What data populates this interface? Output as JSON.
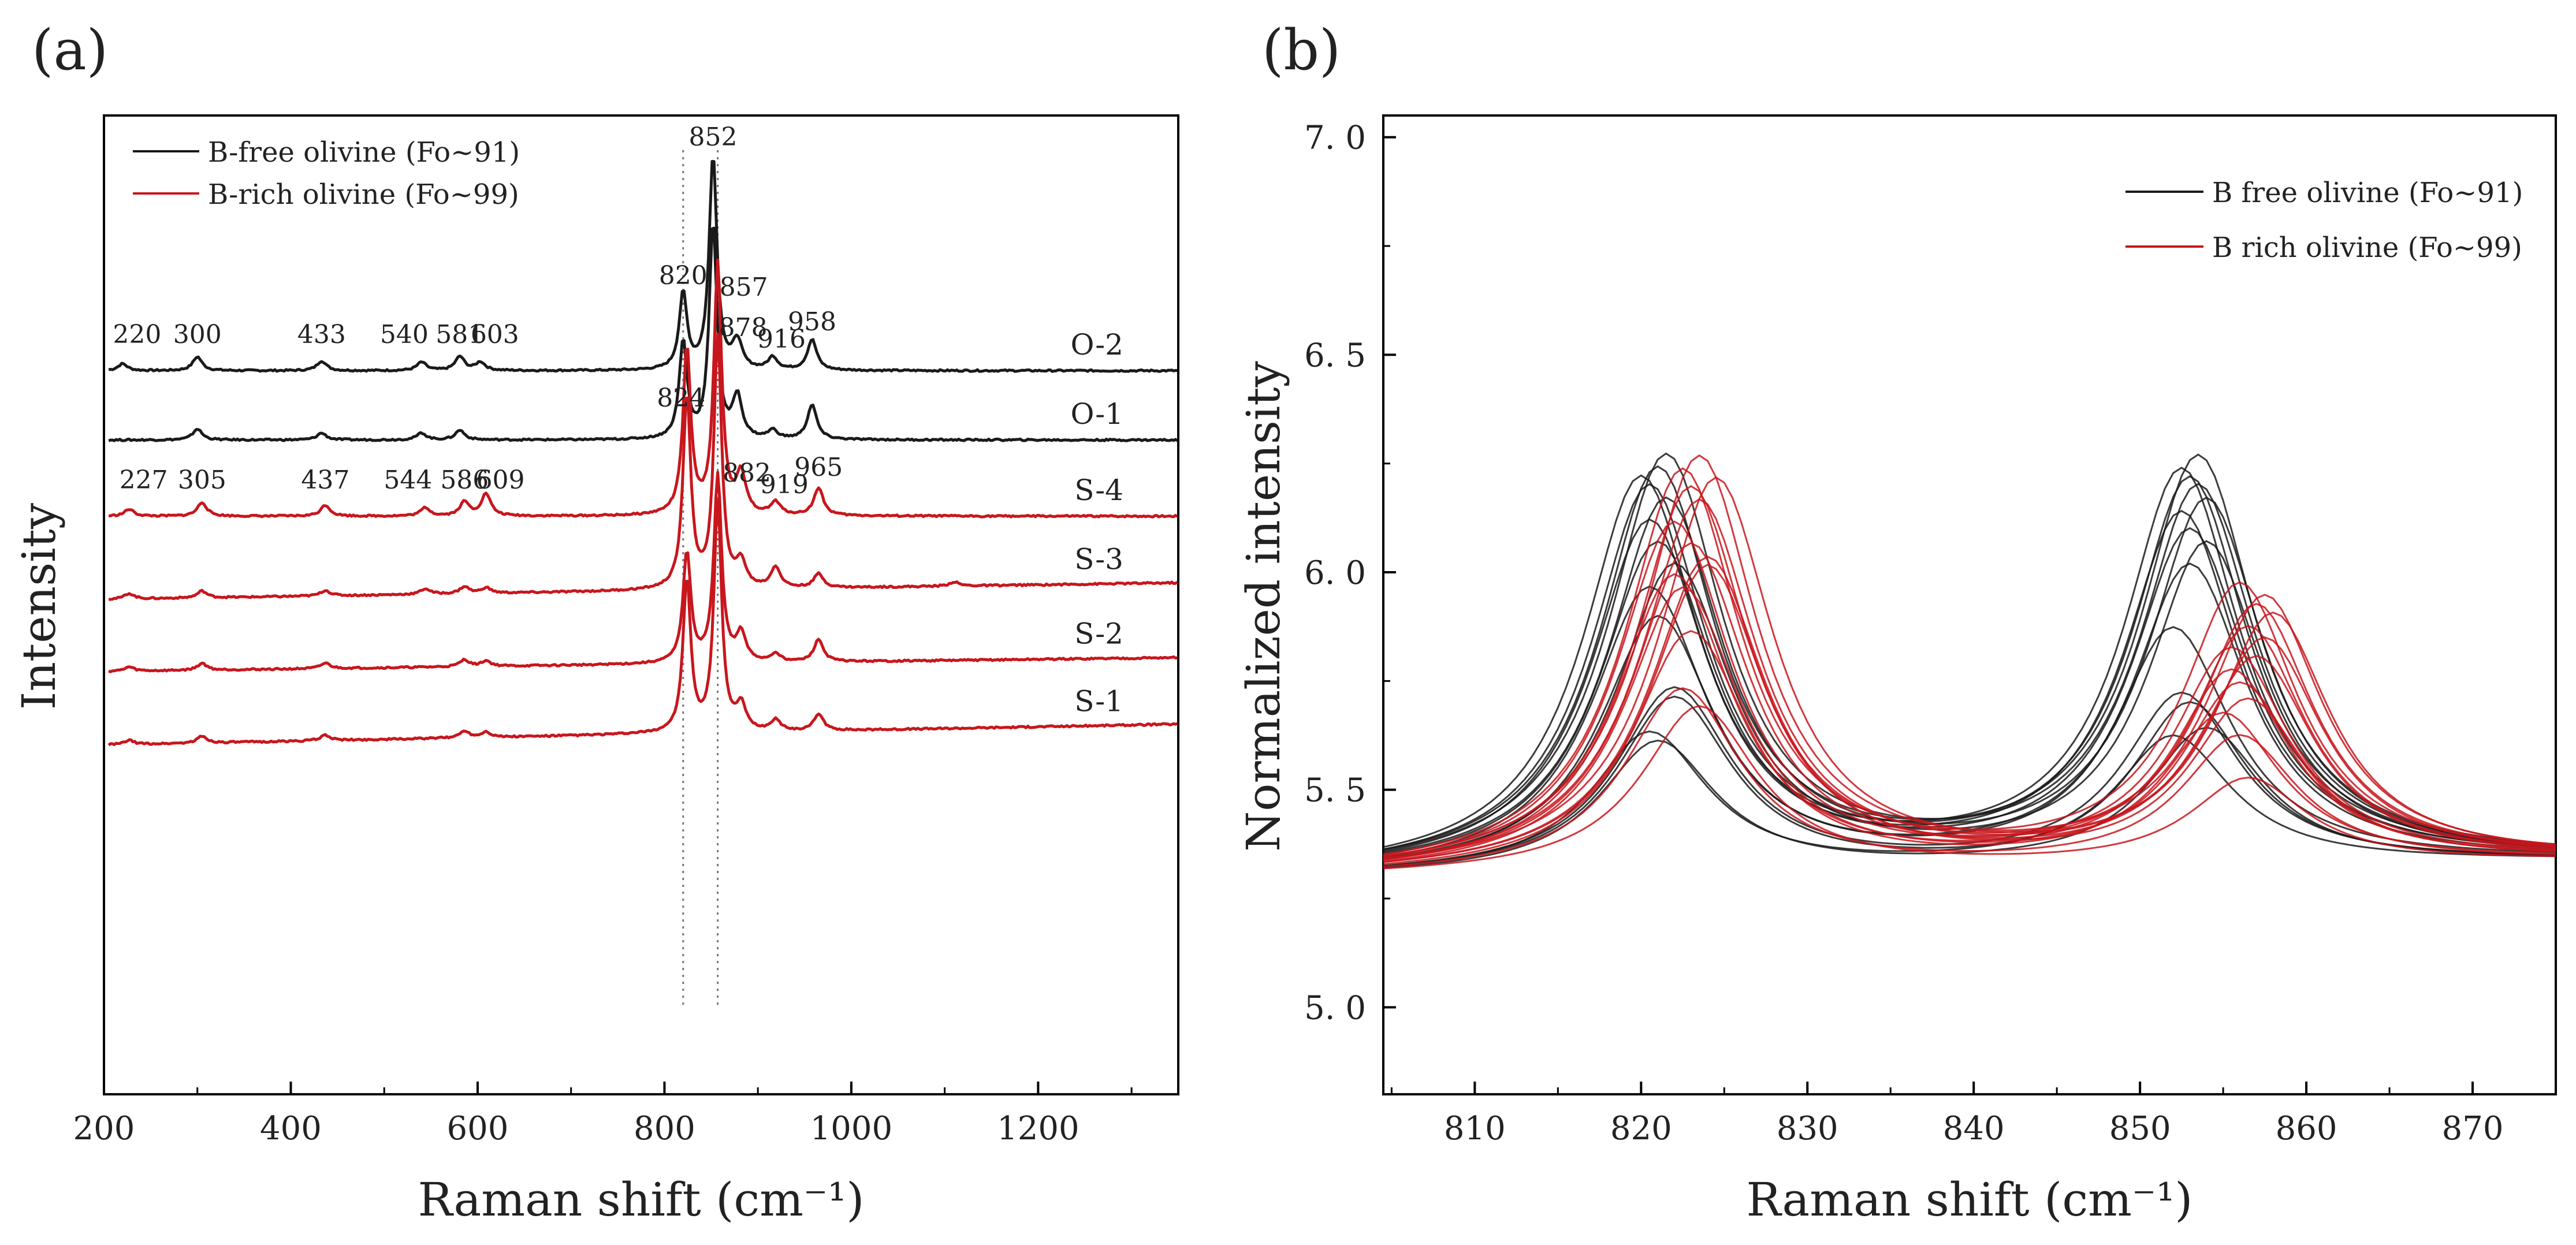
{
  "chart_data": [
    {
      "panel": "(a)",
      "type": "line",
      "title": "",
      "xlabel": "Raman shift  (cm⁻¹)",
      "ylabel": "Intensity",
      "xlim": [
        200,
        1350
      ],
      "xticks": [
        200,
        400,
        600,
        800,
        1000,
        1200
      ],
      "legend": {
        "position": "top-left",
        "entries": [
          {
            "label": "B-free olivine (Fo~91)",
            "color": "#1a1a1a"
          },
          {
            "label": "B-rich olivine (Fo~99)",
            "color": "#c8161d"
          }
        ]
      },
      "reference_lines": [
        820,
        857
      ],
      "series": [
        {
          "name": "O-2",
          "group": "B-free",
          "offset": 0.5,
          "peaks": [
            [
              220,
              0.05
            ],
            [
              300,
              0.1
            ],
            [
              433,
              0.07
            ],
            [
              540,
              0.06
            ],
            [
              581,
              0.1
            ],
            [
              603,
              0.06
            ],
            [
              820,
              0.55
            ],
            [
              852,
              1.55
            ],
            [
              878,
              0.2
            ],
            [
              916,
              0.09
            ],
            [
              958,
              0.22
            ]
          ],
          "peak_labels": [
            220,
            300,
            433,
            540,
            581,
            603,
            820,
            852,
            878,
            916,
            958
          ],
          "peak_label_text": [
            "220",
            "300",
            "433",
            "540",
            "581",
            "603",
            "820",
            "852",
            "878",
            "916",
            "958"
          ],
          "baseline_rise": 0.0
        },
        {
          "name": "O-1",
          "group": "B-free",
          "offset": 0.0,
          "peaks": [
            [
              300,
              0.08
            ],
            [
              433,
              0.05
            ],
            [
              540,
              0.05
            ],
            [
              581,
              0.07
            ],
            [
              820,
              0.7
            ],
            [
              852,
              1.55
            ],
            [
              878,
              0.3
            ],
            [
              916,
              0.06
            ],
            [
              958,
              0.25
            ]
          ],
          "peak_labels": [],
          "peak_label_text": [],
          "baseline_rise": 0.0
        },
        {
          "name": "S-4",
          "group": "B-rich",
          "offset": -0.55,
          "peaks": [
            [
              227,
              0.05
            ],
            [
              305,
              0.1
            ],
            [
              437,
              0.08
            ],
            [
              544,
              0.06
            ],
            [
              586,
              0.1
            ],
            [
              609,
              0.16
            ],
            [
              824,
              1.2
            ],
            [
              857,
              1.8
            ],
            [
              882,
              0.28
            ],
            [
              919,
              0.09
            ],
            [
              965,
              0.2
            ]
          ],
          "peak_labels": [
            227,
            305,
            437,
            544,
            586,
            609,
            824,
            857,
            882,
            919,
            965
          ],
          "peak_label_text": [
            "227",
            "305",
            "437",
            "544",
            "586",
            "609",
            "824",
            "857",
            "882",
            "919",
            "965"
          ],
          "baseline_rise": 0.0
        },
        {
          "name": "S-3",
          "group": "B-rich",
          "offset": -1.15,
          "peaks": [
            [
              227,
              0.04
            ],
            [
              305,
              0.05
            ],
            [
              437,
              0.04
            ],
            [
              544,
              0.04
            ],
            [
              586,
              0.05
            ],
            [
              609,
              0.04
            ],
            [
              824,
              1.4
            ],
            [
              857,
              1.8
            ],
            [
              882,
              0.18
            ],
            [
              919,
              0.15
            ],
            [
              965,
              0.1
            ],
            [
              1110,
              0.03
            ]
          ],
          "peak_labels": [],
          "peak_label_text": [],
          "baseline_rise": 0.12
        },
        {
          "name": "S-2",
          "group": "B-rich",
          "offset": -1.67,
          "peaks": [
            [
              227,
              0.03
            ],
            [
              305,
              0.05
            ],
            [
              437,
              0.04
            ],
            [
              586,
              0.05
            ],
            [
              609,
              0.04
            ],
            [
              824,
              0.8
            ],
            [
              857,
              1.35
            ],
            [
              882,
              0.2
            ],
            [
              919,
              0.06
            ],
            [
              965,
              0.16
            ]
          ],
          "peak_labels": [],
          "peak_label_text": [],
          "baseline_rise": 0.1
        },
        {
          "name": "S-1",
          "group": "B-rich",
          "offset": -2.2,
          "peaks": [
            [
              227,
              0.03
            ],
            [
              305,
              0.05
            ],
            [
              437,
              0.04
            ],
            [
              586,
              0.05
            ],
            [
              609,
              0.04
            ],
            [
              824,
              1.1
            ],
            [
              857,
              1.65
            ],
            [
              882,
              0.18
            ],
            [
              919,
              0.08
            ],
            [
              965,
              0.12
            ]
          ],
          "peak_labels": [],
          "peak_label_text": [],
          "baseline_rise": 0.15
        }
      ]
    },
    {
      "panel": "(b)",
      "type": "line",
      "title": "",
      "xlabel": "Raman shift  (cm⁻¹)",
      "ylabel": "Normalized intensity",
      "xlim": [
        804.5,
        875
      ],
      "ylim": [
        4.8,
        7.05
      ],
      "xticks": [
        810,
        820,
        830,
        840,
        850,
        860,
        870
      ],
      "yticks": [
        5.0,
        5.5,
        6.0,
        6.5,
        7.0
      ],
      "ytick_labels": [
        "5. 0",
        "5. 5",
        "6. 0",
        "6. 5",
        "7. 0"
      ],
      "legend": {
        "position": "top-right",
        "entries": [
          {
            "label": "B free olivine (Fo~91)",
            "color": "#1a1a1a"
          },
          {
            "label": "B rich olivine (Fo~99)",
            "color": "#c8161d"
          }
        ]
      },
      "baseline": 5.3,
      "black_curves": [
        [
          820.0,
          6.2,
          852.5,
          6.22
        ],
        [
          820.5,
          6.18,
          853.0,
          6.2
        ],
        [
          821.0,
          6.22,
          853.5,
          6.25
        ],
        [
          820.5,
          6.1,
          852.5,
          6.12
        ],
        [
          821.5,
          6.15,
          854.0,
          6.15
        ],
        [
          821.0,
          6.05,
          853.0,
          6.08
        ],
        [
          822.0,
          6.0,
          854.0,
          6.05
        ],
        [
          820.5,
          5.95,
          852.0,
          5.85
        ],
        [
          821.0,
          5.88,
          853.0,
          6.0
        ],
        [
          822.0,
          5.72,
          852.5,
          5.7
        ],
        [
          820.5,
          5.62,
          853.0,
          5.68
        ],
        [
          821.0,
          5.6,
          854.0,
          5.62
        ],
        [
          822.0,
          5.7,
          852.0,
          5.6
        ],
        [
          821.5,
          6.25,
          853.5,
          6.18
        ]
      ],
      "red_curves": [
        [
          822.5,
          6.22,
          856.0,
          5.95
        ],
        [
          823.0,
          6.18,
          857.0,
          5.9
        ],
        [
          823.5,
          6.25,
          857.5,
          5.92
        ],
        [
          822.0,
          6.1,
          856.5,
          5.85
        ],
        [
          823.0,
          6.05,
          855.5,
          5.8
        ],
        [
          824.0,
          6.0,
          857.0,
          5.78
        ],
        [
          822.5,
          5.95,
          856.0,
          5.72
        ],
        [
          823.5,
          6.15,
          858.0,
          5.88
        ],
        [
          824.0,
          6.02,
          856.5,
          5.68
        ],
        [
          823.0,
          5.85,
          855.0,
          5.65
        ],
        [
          822.5,
          5.72,
          856.0,
          5.6
        ],
        [
          823.5,
          5.68,
          856.5,
          5.5
        ],
        [
          824.5,
          6.2,
          857.5,
          5.82
        ],
        [
          822.0,
          5.98,
          855.5,
          5.75
        ]
      ]
    }
  ]
}
